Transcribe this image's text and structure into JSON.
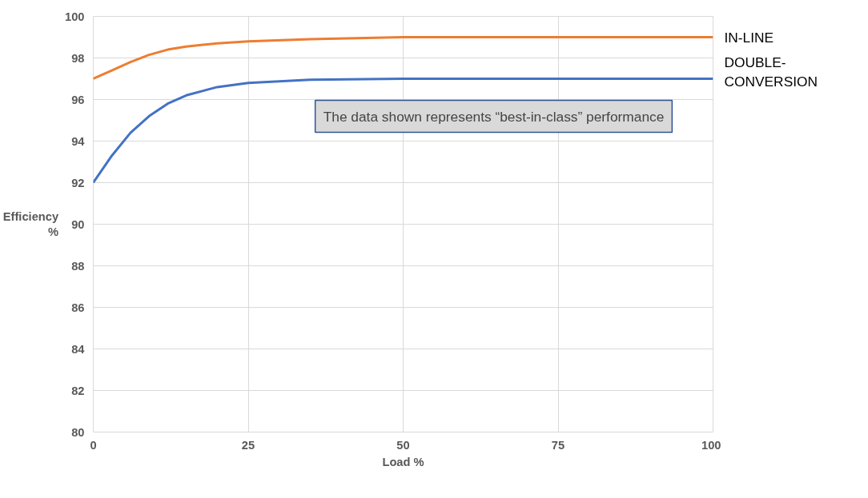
{
  "chart_data": {
    "type": "line",
    "xlabel": "Load %",
    "ylabel": "Efficiency\n%",
    "annotations": [
      "The data shown represents “best-in-class” performance"
    ],
    "series": [
      {
        "name": "IN-LINE",
        "color": "#ed7d31",
        "x": [
          0,
          3,
          6,
          9,
          12,
          15,
          20,
          25,
          35,
          50,
          60,
          75,
          100
        ],
        "values": [
          97.0,
          97.4,
          97.8,
          98.15,
          98.4,
          98.55,
          98.7,
          98.8,
          98.9,
          99.0,
          99.0,
          99.0,
          99.0
        ]
      },
      {
        "name": "DOUBLE-\nCONVERSION",
        "color": "#4472c4",
        "x": [
          0,
          3,
          6,
          9,
          12,
          15,
          20,
          25,
          35,
          50,
          60,
          75,
          100
        ],
        "values": [
          92.0,
          93.3,
          94.4,
          95.2,
          95.8,
          96.2,
          96.6,
          96.8,
          96.95,
          97.0,
          97.0,
          97.0,
          97.0
        ]
      }
    ],
    "xlim": [
      0,
      100
    ],
    "xticks": [
      0,
      25,
      50,
      75,
      100
    ],
    "ylim": [
      80,
      100
    ],
    "yticks": [
      80,
      82,
      84,
      86,
      88,
      90,
      92,
      94,
      96,
      98,
      100
    ],
    "grid": true,
    "marker": "none",
    "line_style": "solid"
  }
}
